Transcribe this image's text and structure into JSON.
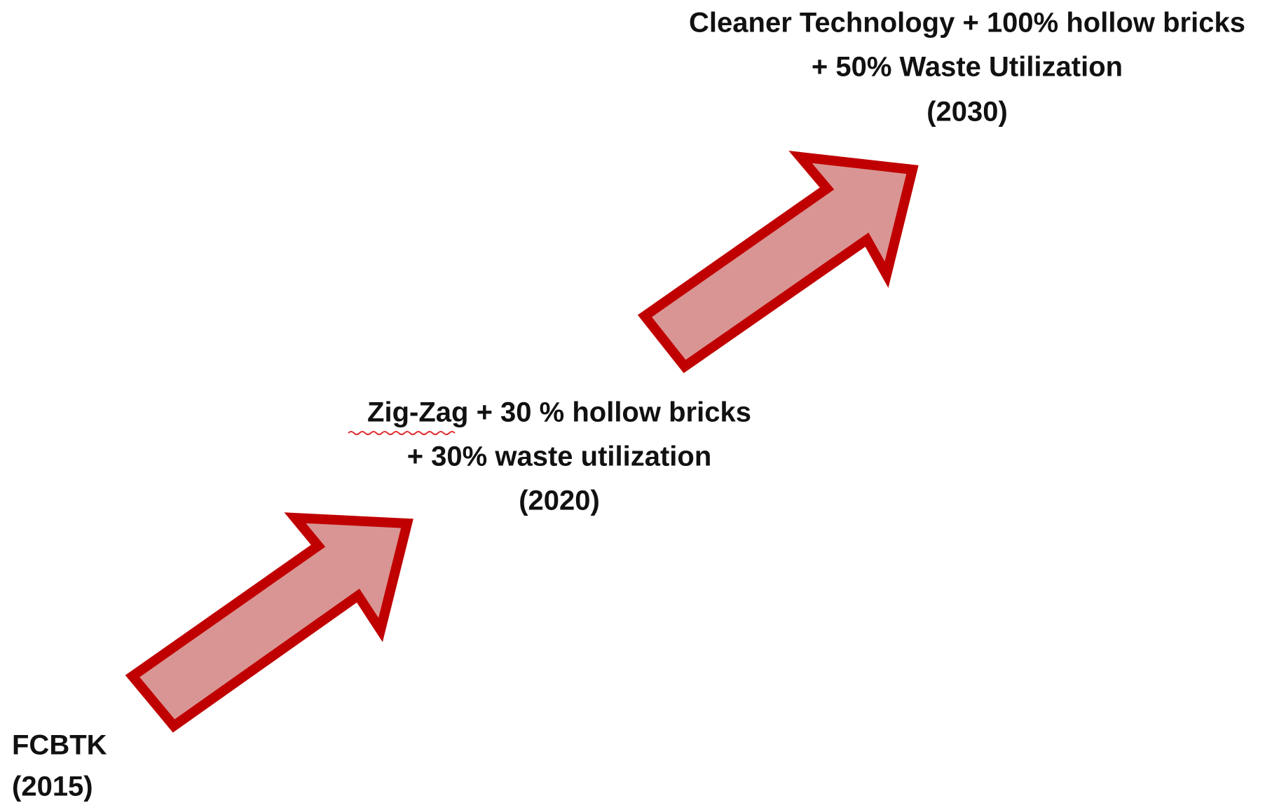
{
  "stages": [
    {
      "lines": [
        "FCBTK",
        "(2015)"
      ]
    },
    {
      "lines": [
        "Zig-Zag + 30 % hollow bricks",
        "+ 30% waste utilization",
        "(2020)"
      ]
    },
    {
      "lines": [
        "Cleaner Technology + 100% hollow bricks",
        "+ 50% Waste Utilization",
        "(2030)"
      ]
    }
  ]
}
